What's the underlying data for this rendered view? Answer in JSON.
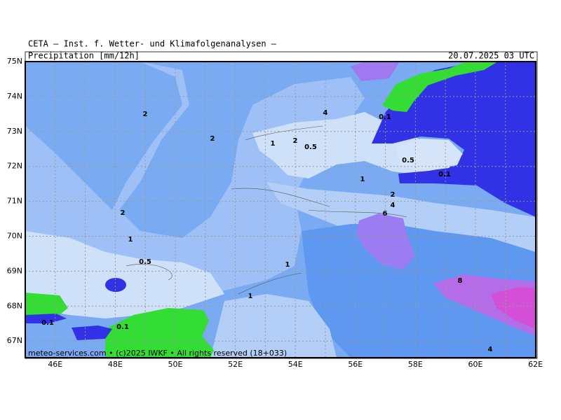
{
  "header": {
    "title": "CETA — Inst. f. Wetter- und Klimafolgenanalysen —",
    "variable": "Precipitation [mm/12h]",
    "datetime": "20.07.2025 03 UTC"
  },
  "axes": {
    "lat_labels": [
      "75N",
      "74N",
      "73N",
      "72N",
      "71N",
      "70N",
      "69N",
      "68N",
      "67N"
    ],
    "lon_labels": [
      "46E",
      "48E",
      "50E",
      "52E",
      "54E",
      "56E",
      "58E",
      "60E",
      "62E"
    ]
  },
  "contour_labels": [
    "2",
    "2",
    "1",
    "2",
    "0.5",
    "4",
    "0.1",
    "0.5",
    "0.1",
    "1",
    "2",
    "4",
    "6",
    "2",
    "1",
    "0.5",
    "1",
    "1",
    "8",
    "0.1",
    "0.1",
    "4"
  ],
  "footer": "meteo-services.com • (c)2025 IWKF • All rights reserved (18+033)"
}
